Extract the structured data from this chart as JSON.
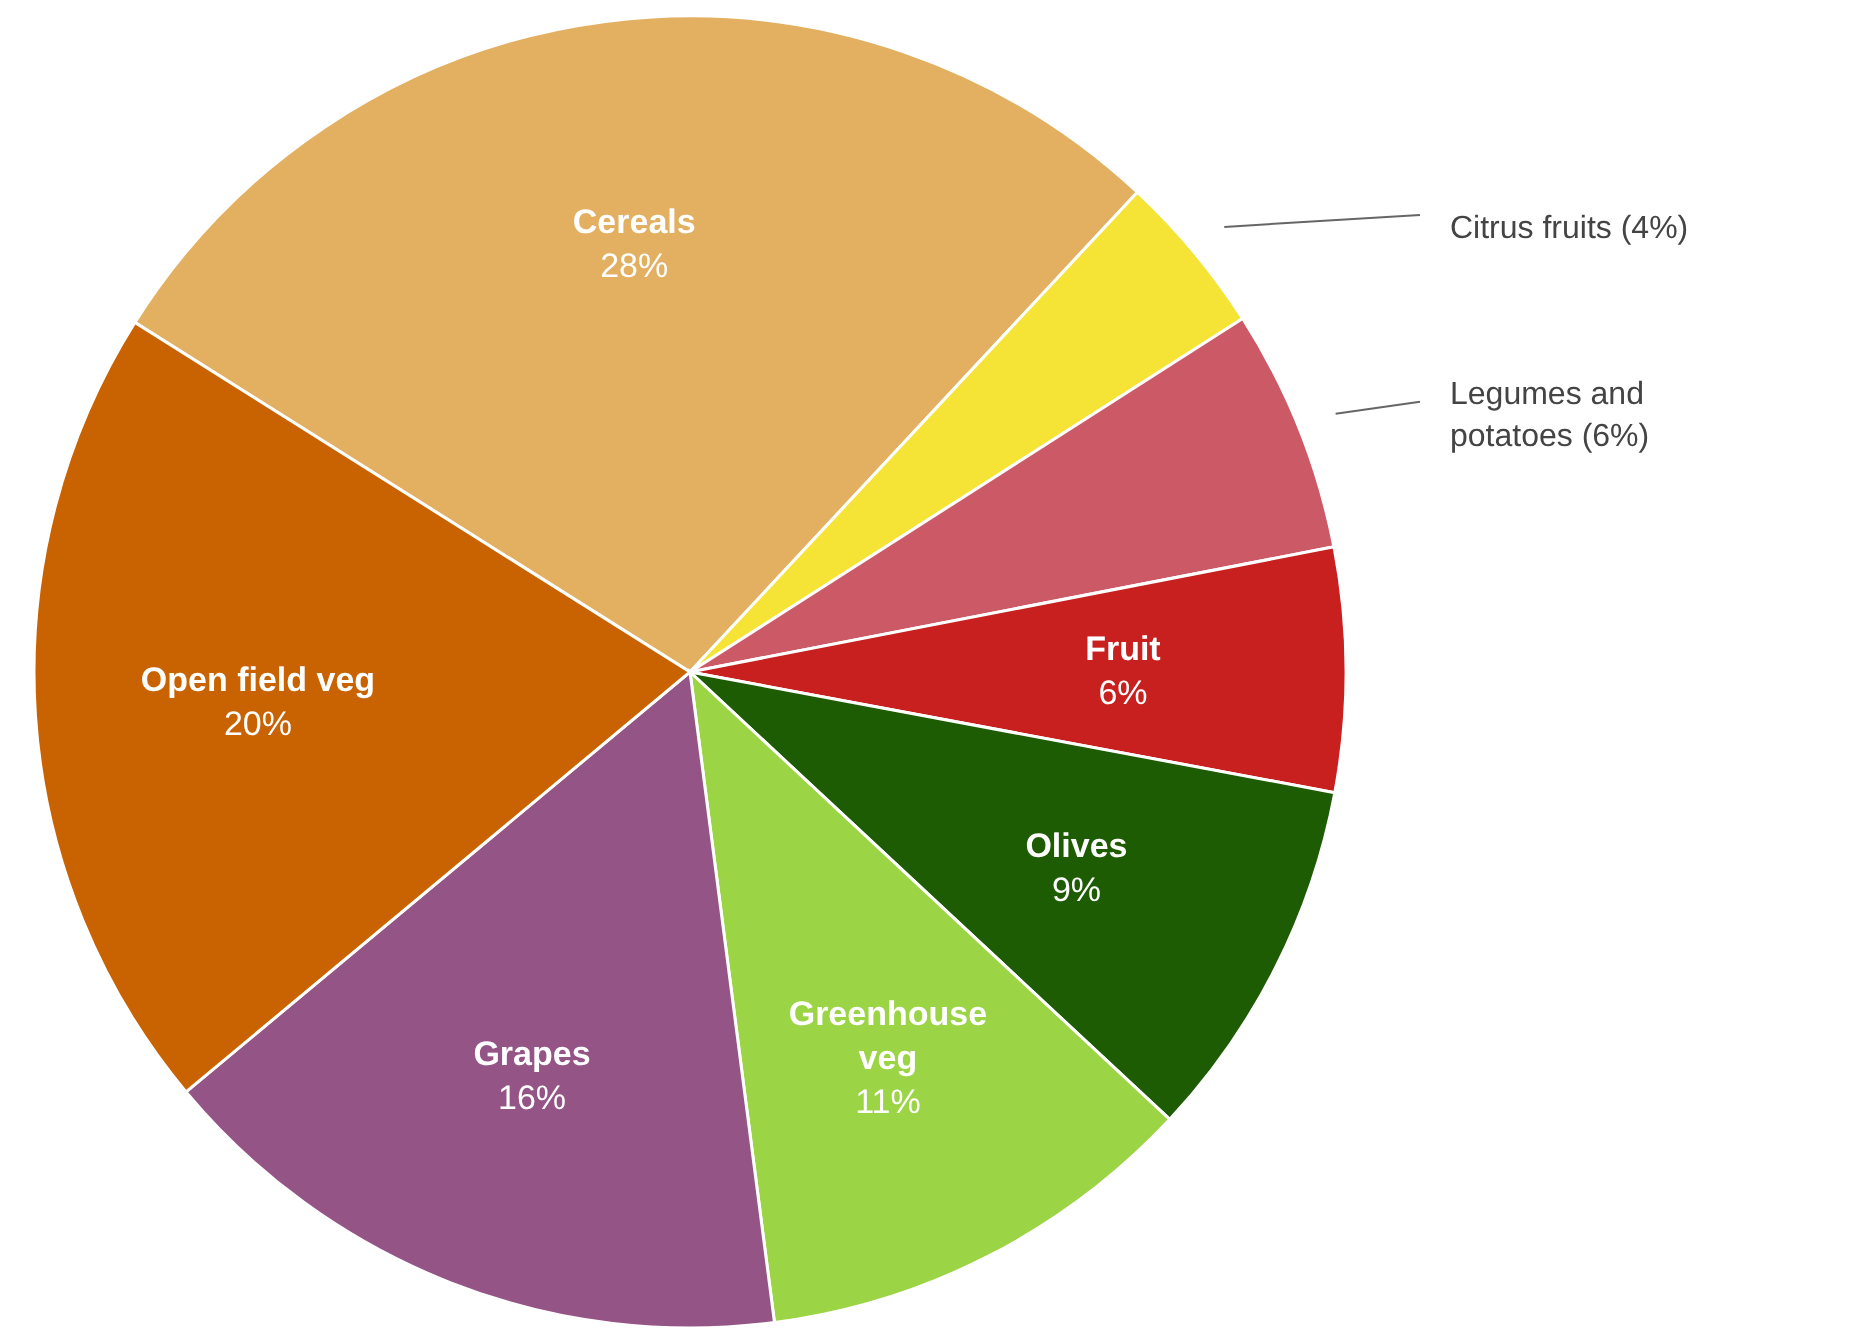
{
  "chart_data": {
    "type": "pie",
    "categories": [
      "Cereals",
      "Citrus fruits",
      "Legumes and potatoes",
      "Fruit",
      "Olives",
      "Greenhouse veg",
      "Grapes",
      "Open field veg"
    ],
    "values": [
      28,
      4,
      6,
      6,
      9,
      11,
      16,
      20
    ],
    "value_labels": [
      "28%",
      "(4%)",
      "(6%)",
      "6%",
      "9%",
      "11%",
      "16%",
      "20%"
    ],
    "colors": [
      "#e3b062",
      "#f5e435",
      "#cc5a66",
      "#c8201f",
      "#1e5c03",
      "#9bd445",
      "#945485",
      "#c96200"
    ]
  }
}
